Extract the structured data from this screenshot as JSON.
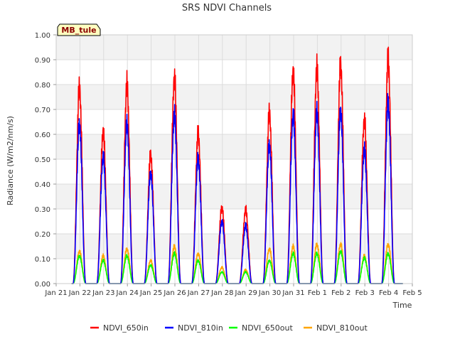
{
  "chart_data": {
    "type": "line",
    "title": "SRS NDVI Channels",
    "xlabel": "Time",
    "ylabel": "Radiance (W/m2/nm/s)",
    "annotation": "MB_tule",
    "ylim": [
      0,
      1.0
    ],
    "xlim": [
      0,
      15
    ],
    "yticks": [
      "0.00",
      "0.10",
      "0.20",
      "0.30",
      "0.40",
      "0.50",
      "0.60",
      "0.70",
      "0.80",
      "0.90",
      "1.00"
    ],
    "xticks": [
      "Jan 21",
      "Jan 22",
      "Jan 23",
      "Jan 24",
      "Jan 25",
      "Jan 26",
      "Jan 27",
      "Jan 28",
      "Jan 29",
      "Jan 30",
      "Jan 31",
      "Feb 1",
      "Feb 2",
      "Feb 3",
      "Feb 4",
      "Feb 5"
    ],
    "grid": true,
    "legend_position": "bottom",
    "day_offset_from_jan21": [
      1,
      2,
      3,
      4,
      5,
      6,
      7,
      8,
      9,
      10,
      11,
      12,
      13,
      14
    ],
    "series": [
      {
        "name": "NDVI_650in",
        "color": "#ff0000",
        "daily_peaks": [
          0.85,
          0.66,
          0.86,
          0.56,
          0.89,
          0.65,
          0.33,
          0.32,
          0.74,
          0.92,
          0.93,
          0.95,
          0.71,
          0.97
        ]
      },
      {
        "name": "NDVI_810in",
        "color": "#0000ff",
        "daily_peaks": [
          0.69,
          0.55,
          0.69,
          0.48,
          0.73,
          0.54,
          0.27,
          0.25,
          0.6,
          0.73,
          0.74,
          0.75,
          0.58,
          0.78
        ]
      },
      {
        "name": "NDVI_650out",
        "color": "#00ff00",
        "daily_peaks": [
          0.12,
          0.1,
          0.12,
          0.08,
          0.13,
          0.1,
          0.05,
          0.05,
          0.1,
          0.13,
          0.13,
          0.14,
          0.11,
          0.13
        ]
      },
      {
        "name": "NDVI_810out",
        "color": "#ffa500",
        "daily_peaks": [
          0.14,
          0.12,
          0.15,
          0.1,
          0.16,
          0.13,
          0.07,
          0.06,
          0.15,
          0.16,
          0.17,
          0.17,
          0.12,
          0.17
        ]
      }
    ]
  }
}
